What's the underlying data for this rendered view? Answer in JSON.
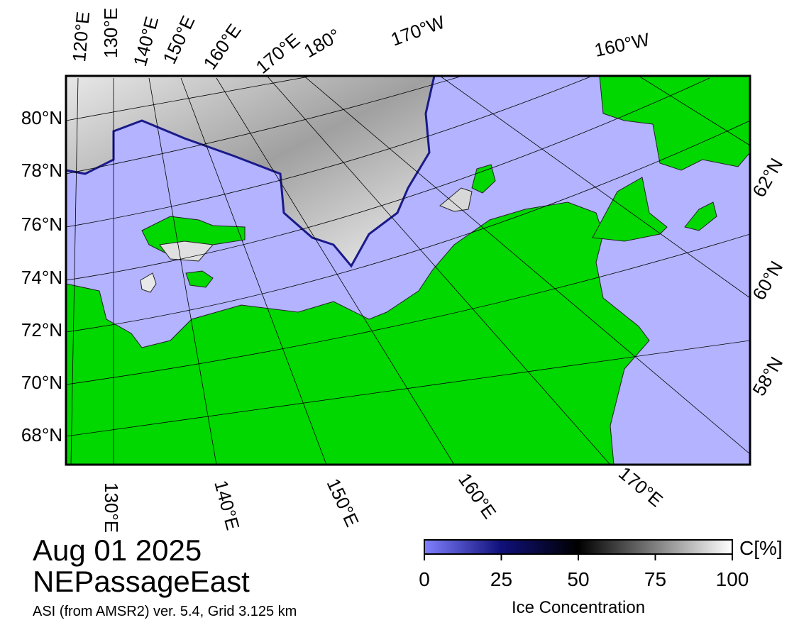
{
  "date": "Aug 01 2025",
  "region": "NEPassageEast",
  "source": "ASI (from AMSR2) ver. 5.4,  Grid 3.125 km",
  "colorbar": {
    "label": "Ice Concentration",
    "unit": "C[%]",
    "lim": [
      0,
      100
    ],
    "ticks": [
      0,
      25,
      50,
      75,
      100
    ]
  },
  "map": {
    "lat_labels_left": [
      "80°N",
      "78°N",
      "76°N",
      "74°N",
      "72°N",
      "70°N",
      "68°N"
    ],
    "lat_labels_right": [
      "62°N",
      "60°N",
      "58°N"
    ],
    "lon_labels_top": [
      "120°E",
      "130°E",
      "140°E",
      "150°E",
      "160°E",
      "170°E",
      "180°",
      "170°W",
      "160°W"
    ],
    "lon_labels_bottom": [
      "130°E",
      "140°E",
      "150°E",
      "160°E",
      "170°E"
    ]
  }
}
